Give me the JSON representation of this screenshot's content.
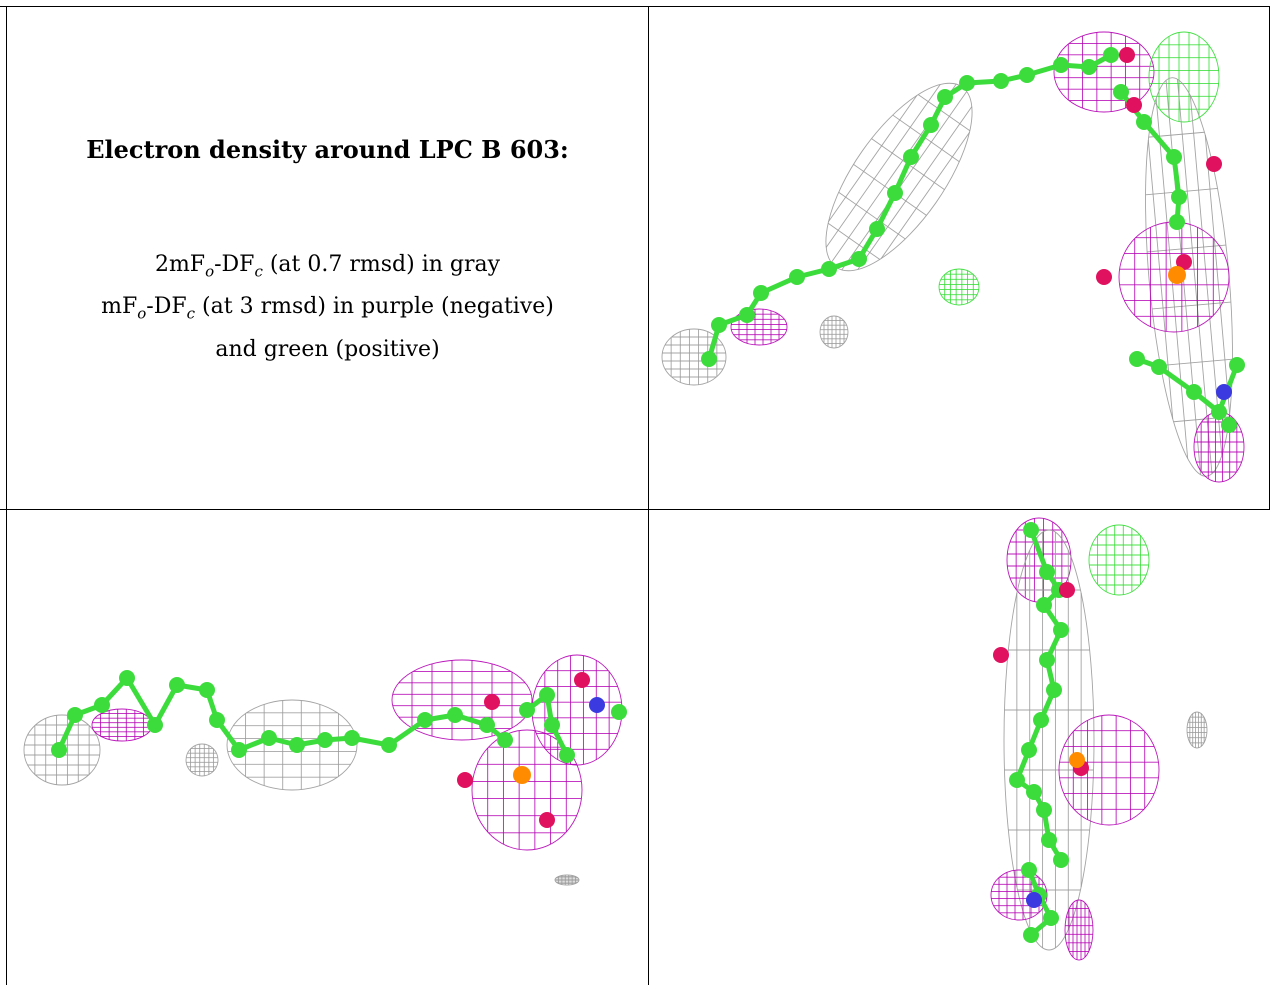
{
  "table": {
    "title": "Electron density around LPC B 603:",
    "lines": [
      {
        "prefix": "2mF",
        "sub1": "o",
        "mid": "-DF",
        "sub2": "c",
        "suffix": " (at 0.7 rmsd) in gray"
      },
      {
        "prefix": "mF",
        "sub1": "o",
        "mid": "-DF",
        "sub2": "c",
        "suffix": " (at 3 rmsd) in purple (negative)"
      },
      {
        "text": "and green (positive)"
      }
    ]
  },
  "colors": {
    "carbon": "#3ddc3d",
    "oxygen": "#e0115f",
    "phosphorus": "#ff8c00",
    "nitrogen": "#3a3ae0",
    "density_2fofc": "#9a9a9a",
    "density_negative": "#b400b4",
    "density_positive": "#33dd33"
  },
  "panels": [
    {
      "name": "view-top-right"
    },
    {
      "name": "view-bottom-left"
    },
    {
      "name": "view-bottom-right"
    }
  ]
}
